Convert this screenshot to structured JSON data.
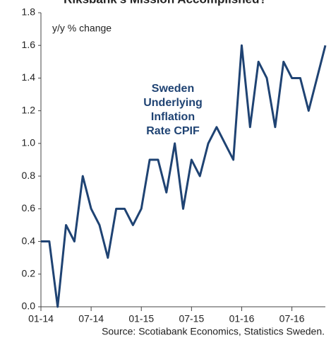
{
  "chart_data": {
    "type": "line",
    "title": "Riksbank's Mission Accomplished?",
    "y_label": "y/y % change",
    "annotation": [
      "Sweden",
      "Underlying",
      "Inflation",
      "Rate CPIF"
    ],
    "source": "Source: Scotiabank Economics, Statistics Sweden.",
    "categories": [
      "01-14",
      null,
      null,
      null,
      null,
      null,
      "07-14",
      null,
      null,
      null,
      null,
      null,
      "01-15",
      null,
      null,
      null,
      null,
      null,
      "07-15",
      null,
      null,
      null,
      null,
      null,
      "01-16",
      null,
      null,
      null,
      null,
      null,
      "07-16",
      null,
      null,
      null,
      null
    ],
    "series": [
      {
        "name": "Sweden Underlying Inflation Rate CPIF",
        "color": "#1f4373",
        "values": [
          0.4,
          0.4,
          0.0,
          0.5,
          0.4,
          0.8,
          0.6,
          0.5,
          0.3,
          0.6,
          0.6,
          0.5,
          0.6,
          0.9,
          0.9,
          0.7,
          1.0,
          0.6,
          0.9,
          0.8,
          1.0,
          1.1,
          1.0,
          0.9,
          1.6,
          1.1,
          1.5,
          1.4,
          1.1,
          1.5,
          1.4,
          1.4,
          1.2,
          1.4,
          1.6
        ]
      }
    ],
    "ylim": [
      0,
      1.8
    ],
    "yticks": [
      {
        "value": 0,
        "label": "0.0"
      },
      0.2,
      0.4,
      0.6,
      0.8,
      {
        "value": 1,
        "label": "1.0"
      },
      1.2,
      1.4,
      1.6,
      1.8
    ],
    "grid": false
  }
}
